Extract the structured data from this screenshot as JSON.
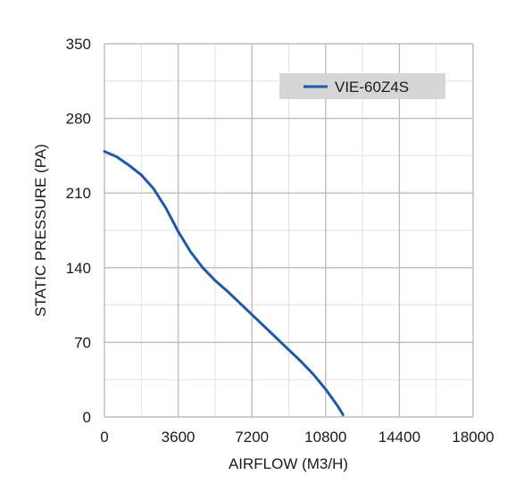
{
  "chart_data": {
    "type": "line",
    "title": "",
    "xlabel": "AIRFLOW (M3/H)",
    "ylabel": "STATIC PRESSURE (PA)",
    "xlim": [
      0,
      18000
    ],
    "ylim": [
      0,
      350
    ],
    "x_ticks": [
      0,
      3600,
      7200,
      10800,
      14400,
      18000
    ],
    "x_tick_labels": [
      "0",
      "3600",
      "7200",
      "10800",
      "14400",
      "18000"
    ],
    "y_ticks": [
      0,
      70,
      140,
      210,
      280,
      350
    ],
    "y_tick_labels": [
      "0",
      "70",
      "140",
      "210",
      "280",
      "350"
    ],
    "x_minor_step": 1800,
    "y_minor_step": 35,
    "grid": true,
    "legend_position": "top-right",
    "series": [
      {
        "name": "VIE-60Z4S",
        "color": "#1f5aa6",
        "x": [
          0,
          600,
          1200,
          1800,
          2400,
          3000,
          3600,
          4200,
          4800,
          5400,
          6000,
          6600,
          7200,
          7800,
          8400,
          9000,
          9600,
          10200,
          10800,
          11400,
          11650
        ],
        "y": [
          249,
          244,
          236,
          227,
          214,
          196,
          174,
          155,
          140,
          128,
          118,
          107,
          96,
          85,
          74,
          63,
          52,
          40,
          26,
          10,
          2
        ]
      }
    ]
  }
}
